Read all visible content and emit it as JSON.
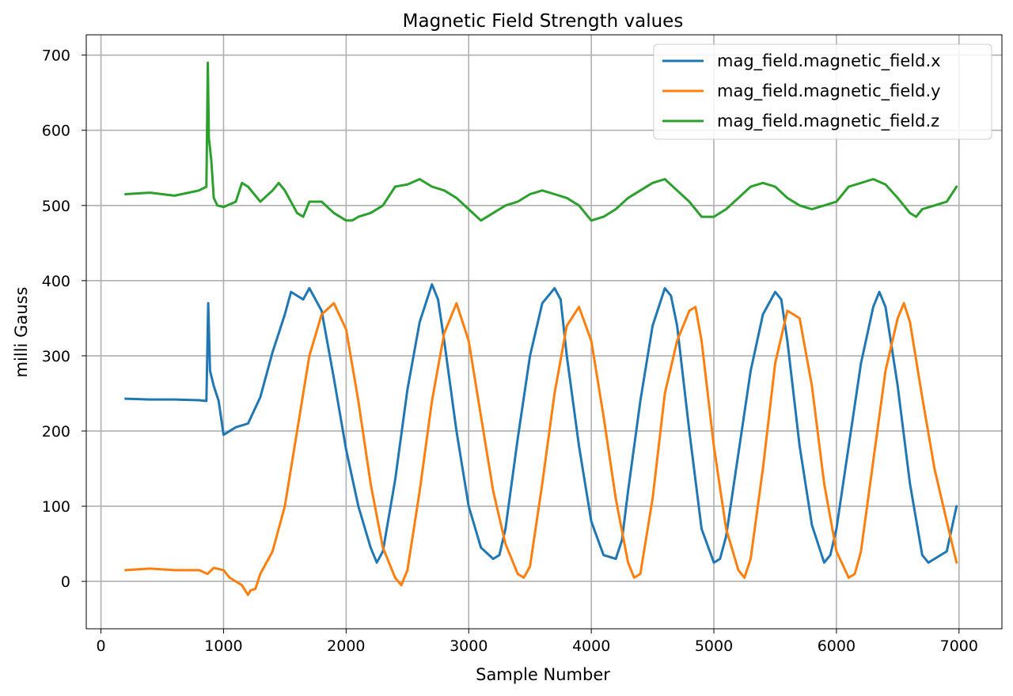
{
  "chart_data": {
    "type": "line",
    "title": "Magnetic Field Strength values",
    "xlabel": "Sample Number",
    "ylabel": "milli Gauss",
    "xlim": [
      -120,
      7350
    ],
    "ylim": [
      -63,
      727
    ],
    "x_ticks": [
      0,
      1000,
      2000,
      3000,
      4000,
      5000,
      6000,
      7000
    ],
    "y_ticks": [
      0,
      100,
      200,
      300,
      400,
      500,
      600,
      700
    ],
    "grid": true,
    "legend_position": "top-right",
    "series": [
      {
        "name": "mag_field.magnetic_field.x",
        "color": "#1f77b4",
        "x": [
          200,
          400,
          600,
          800,
          860,
          875,
          890,
          920,
          960,
          1000,
          1100,
          1200,
          1300,
          1400,
          1500,
          1550,
          1600,
          1650,
          1700,
          1800,
          1900,
          2000,
          2100,
          2200,
          2250,
          2300,
          2400,
          2500,
          2600,
          2700,
          2750,
          2800,
          2900,
          3000,
          3100,
          3200,
          3250,
          3300,
          3400,
          3500,
          3600,
          3700,
          3750,
          3800,
          3900,
          4000,
          4100,
          4200,
          4250,
          4300,
          4400,
          4500,
          4600,
          4650,
          4700,
          4800,
          4900,
          5000,
          5050,
          5100,
          5200,
          5300,
          5400,
          5500,
          5550,
          5600,
          5700,
          5800,
          5900,
          5950,
          6000,
          6100,
          6200,
          6300,
          6350,
          6400,
          6500,
          6600,
          6700,
          6750,
          6800,
          6900,
          6980
        ],
        "y": [
          243,
          242,
          242,
          241,
          240,
          370,
          280,
          260,
          240,
          195,
          205,
          210,
          245,
          305,
          355,
          385,
          380,
          375,
          390,
          360,
          270,
          175,
          100,
          45,
          25,
          40,
          135,
          255,
          345,
          395,
          375,
          320,
          200,
          100,
          45,
          30,
          35,
          70,
          190,
          300,
          370,
          390,
          375,
          300,
          180,
          80,
          35,
          30,
          55,
          120,
          240,
          340,
          390,
          380,
          340,
          200,
          70,
          25,
          30,
          60,
          170,
          280,
          355,
          385,
          375,
          320,
          180,
          75,
          25,
          35,
          70,
          180,
          290,
          365,
          385,
          365,
          260,
          130,
          35,
          25,
          30,
          40,
          100
        ]
      },
      {
        "name": "mag_field.magnetic_field.y",
        "color": "#ff7f0e",
        "x": [
          200,
          400,
          600,
          800,
          870,
          920,
          1000,
          1050,
          1100,
          1150,
          1200,
          1220,
          1260,
          1300,
          1400,
          1500,
          1600,
          1700,
          1800,
          1900,
          2000,
          2100,
          2200,
          2300,
          2400,
          2450,
          2500,
          2600,
          2700,
          2800,
          2900,
          3000,
          3100,
          3200,
          3300,
          3400,
          3450,
          3500,
          3600,
          3700,
          3800,
          3900,
          4000,
          4100,
          4200,
          4300,
          4350,
          4400,
          4500,
          4600,
          4700,
          4800,
          4850,
          4900,
          5000,
          5100,
          5200,
          5250,
          5300,
          5400,
          5500,
          5600,
          5700,
          5800,
          5900,
          6000,
          6100,
          6150,
          6200,
          6300,
          6400,
          6500,
          6550,
          6600,
          6700,
          6800,
          6900,
          6980
        ],
        "y": [
          15,
          17,
          15,
          15,
          10,
          18,
          15,
          5,
          0,
          -5,
          -18,
          -12,
          -10,
          10,
          40,
          100,
          200,
          300,
          355,
          370,
          335,
          240,
          130,
          45,
          5,
          -5,
          15,
          120,
          240,
          330,
          370,
          320,
          220,
          120,
          50,
          10,
          5,
          20,
          130,
          250,
          340,
          365,
          320,
          220,
          110,
          25,
          5,
          10,
          110,
          250,
          320,
          360,
          365,
          320,
          180,
          70,
          15,
          5,
          30,
          150,
          290,
          360,
          350,
          260,
          130,
          40,
          5,
          10,
          40,
          160,
          280,
          350,
          370,
          345,
          245,
          150,
          80,
          25
        ]
      },
      {
        "name": "mag_field.magnetic_field.z",
        "color": "#2ca02c",
        "x": [
          200,
          400,
          600,
          800,
          860,
          872,
          880,
          900,
          920,
          950,
          1000,
          1100,
          1150,
          1200,
          1300,
          1400,
          1450,
          1500,
          1600,
          1650,
          1700,
          1800,
          1900,
          2000,
          2050,
          2100,
          2200,
          2300,
          2400,
          2500,
          2600,
          2700,
          2800,
          2900,
          3000,
          3100,
          3200,
          3300,
          3400,
          3500,
          3600,
          3700,
          3800,
          3900,
          4000,
          4100,
          4200,
          4300,
          4400,
          4500,
          4600,
          4700,
          4800,
          4900,
          5000,
          5100,
          5200,
          5300,
          5400,
          5500,
          5600,
          5700,
          5800,
          5900,
          6000,
          6100,
          6200,
          6300,
          6400,
          6500,
          6600,
          6650,
          6700,
          6800,
          6900,
          6980
        ],
        "y": [
          515,
          517,
          513,
          520,
          525,
          690,
          590,
          560,
          510,
          500,
          498,
          505,
          530,
          525,
          505,
          520,
          530,
          520,
          490,
          485,
          505,
          505,
          490,
          480,
          480,
          485,
          490,
          500,
          525,
          528,
          535,
          525,
          520,
          510,
          495,
          480,
          490,
          500,
          505,
          515,
          520,
          515,
          510,
          500,
          480,
          485,
          495,
          510,
          520,
          530,
          535,
          520,
          505,
          485,
          485,
          495,
          510,
          525,
          530,
          525,
          510,
          500,
          495,
          500,
          505,
          525,
          530,
          535,
          528,
          510,
          490,
          485,
          495,
          500,
          505,
          525
        ]
      }
    ]
  }
}
